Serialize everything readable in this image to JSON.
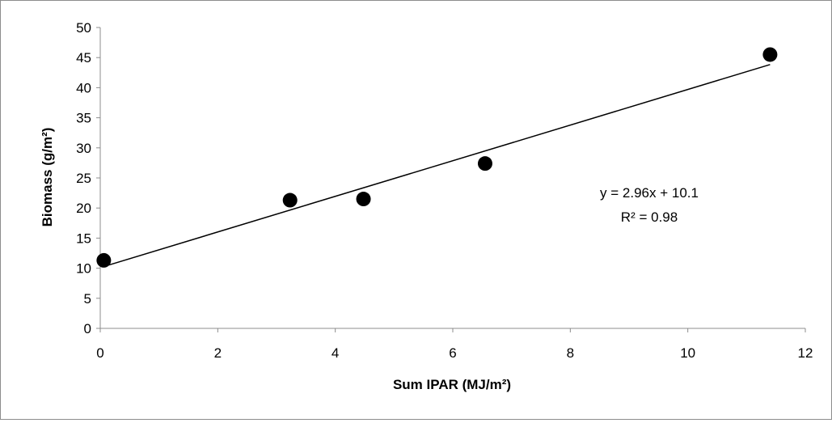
{
  "chart_data": {
    "type": "scatter",
    "title": "",
    "xlabel": "Sum IPAR (MJ/m²)",
    "ylabel": "Biomass (g/m²)",
    "xlim": [
      0,
      12
    ],
    "ylim": [
      0,
      50
    ],
    "xticks": [
      0,
      2,
      4,
      6,
      8,
      10,
      12
    ],
    "yticks": [
      0,
      5,
      10,
      15,
      20,
      25,
      30,
      35,
      40,
      45,
      50
    ],
    "xtick_labels": [
      "0",
      "2",
      "4",
      "6",
      "8",
      "10",
      "12"
    ],
    "ytick_labels": [
      "0",
      "5",
      "10",
      "15",
      "20",
      "25",
      "30",
      "35",
      "40",
      "45",
      "50"
    ],
    "grid": false,
    "legend": "none",
    "marker_color": "#000000",
    "series": [
      {
        "x": [
          0.06,
          3.23,
          4.48,
          6.55,
          11.4
        ],
        "y": [
          11.3,
          21.3,
          21.5,
          27.4,
          45.5
        ]
      }
    ],
    "trendline": {
      "slope": 2.96,
      "intercept": 10.1,
      "x_range": [
        0.06,
        11.4
      ],
      "equation": "y = 2.96x + 10.1",
      "r2_label": "R² = 0.98"
    }
  }
}
